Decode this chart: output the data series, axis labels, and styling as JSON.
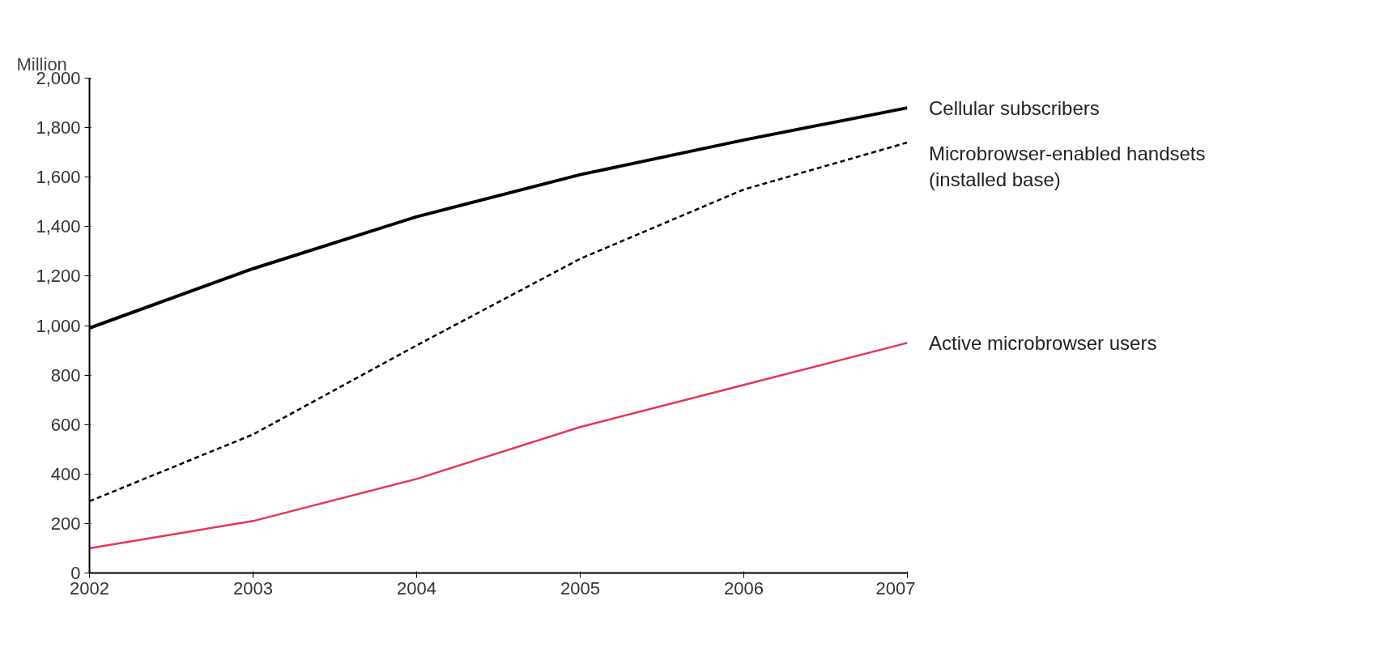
{
  "chart_data": {
    "type": "line",
    "ylabel": "Million",
    "x": [
      2002,
      2003,
      2004,
      2005,
      2006,
      2007
    ],
    "series": [
      {
        "name": "Cellular subscribers",
        "color": "#000000",
        "line_style": "solid",
        "values": [
          990,
          1230,
          1440,
          1610,
          1750,
          1880
        ]
      },
      {
        "name": "Microbrowser-enabled handsets\n(installed base)",
        "color": "#000000",
        "line_style": "dashed",
        "values": [
          290,
          560,
          920,
          1270,
          1550,
          1740
        ]
      },
      {
        "name": "Active microbrowser users",
        "color": "#e8335a",
        "line_style": "solid",
        "values": [
          100,
          210,
          380,
          590,
          760,
          930
        ]
      }
    ],
    "xlim": [
      2002,
      2007
    ],
    "xticks": [
      2002,
      2003,
      2004,
      2005,
      2006,
      2007
    ],
    "ylim": [
      0,
      2000
    ],
    "yticks": [
      0,
      200,
      400,
      600,
      800,
      {
        "value": 1000,
        "label": "1,000"
      },
      {
        "value": 1200,
        "label": "1,200"
      },
      {
        "value": 1400,
        "label": "1,400"
      },
      {
        "value": 1600,
        "label": "1,600"
      },
      {
        "value": 1800,
        "label": "1,800"
      },
      {
        "value": 2000,
        "label": "2,000"
      }
    ],
    "grid": false,
    "legend": false,
    "marker": "none"
  }
}
